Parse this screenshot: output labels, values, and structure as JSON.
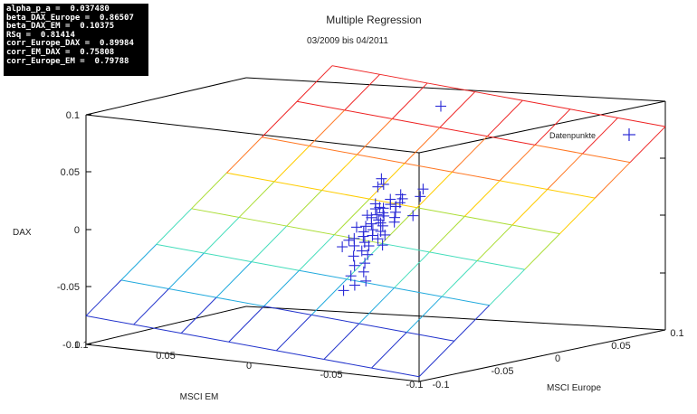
{
  "stats_box": {
    "lines": [
      "alpha_p_a =  0.037480",
      "beta_DAX_Europe =  0.86507",
      "beta_DAX_EM =  0.10375",
      "RSq =  0.81414",
      "corr_Europe_DAX =  0.89984",
      "corr_EM_DAX =  0.75808",
      "corr_Europe_EM =  0.79788"
    ]
  },
  "chart_data": {
    "type": "scatter",
    "title": "Multiple Regression",
    "subtitle": "03/2009 bis 04/2011",
    "zlabel": "DAX",
    "xlabel": "MSCI EM",
    "ylabel": "MSCI Europe",
    "legend": "Datenpunkte",
    "z_ticks": [
      "0.1",
      "0.05",
      "0",
      "-0.05",
      "-0.1"
    ],
    "x_ticks": [
      "0.1",
      "0.05",
      "0",
      "-0.05",
      "-0.1"
    ],
    "y_ticks": [
      "-0.1",
      "-0.05",
      "0",
      "0.05",
      "0.1"
    ],
    "colors": {
      "points": "#2b2bd6",
      "plane": [
        "#2233cc",
        "#22aadd",
        "#44ddbb",
        "#aadd33",
        "#ffcc00",
        "#ff7722",
        "#ee2222"
      ]
    },
    "plane": {
      "alpha": 0.001,
      "beta_europe": 0.86507,
      "beta_em": 0.10375
    },
    "points": [
      {
        "em": 0.02,
        "eu": 0.08,
        "dax": 0.08
      },
      {
        "em": 0.015,
        "eu": 0.025,
        "dax": 0.03
      },
      {
        "em": 0.01,
        "eu": 0.02,
        "dax": 0.027
      },
      {
        "em": 0.012,
        "eu": 0.018,
        "dax": 0.025
      },
      {
        "em": -0.01,
        "eu": 0.025,
        "dax": 0.025
      },
      {
        "em": -0.012,
        "eu": 0.02,
        "dax": 0.02
      },
      {
        "em": -0.005,
        "eu": 0.015,
        "dax": 0.018
      },
      {
        "em": -0.005,
        "eu": 0.013,
        "dax": 0.015
      },
      {
        "em": 0.0,
        "eu": 0.012,
        "dax": 0.013
      },
      {
        "em": 0.005,
        "eu": 0.01,
        "dax": 0.01
      },
      {
        "em": 0.002,
        "eu": 0.009,
        "dax": 0.01
      },
      {
        "em": -0.004,
        "eu": 0.011,
        "dax": 0.012
      },
      {
        "em": -0.006,
        "eu": 0.008,
        "dax": 0.008
      },
      {
        "em": 0.0,
        "eu": 0.006,
        "dax": 0.007
      },
      {
        "em": 0.003,
        "eu": 0.005,
        "dax": 0.005
      },
      {
        "em": -0.002,
        "eu": 0.004,
        "dax": 0.005
      },
      {
        "em": -0.007,
        "eu": 0.006,
        "dax": 0.004
      },
      {
        "em": 0.004,
        "eu": 0.002,
        "dax": 0.003
      },
      {
        "em": -0.001,
        "eu": 0.001,
        "dax": 0.002
      },
      {
        "em": -0.003,
        "eu": 0.0,
        "dax": 0.0
      },
      {
        "em": 0.001,
        "eu": -0.002,
        "dax": -0.001
      },
      {
        "em": -0.005,
        "eu": -0.001,
        "dax": -0.002
      },
      {
        "em": 0.003,
        "eu": -0.004,
        "dax": -0.003
      },
      {
        "em": -0.002,
        "eu": -0.005,
        "dax": -0.005
      },
      {
        "em": -0.006,
        "eu": -0.004,
        "dax": -0.006
      },
      {
        "em": 0.002,
        "eu": -0.007,
        "dax": -0.007
      },
      {
        "em": -0.004,
        "eu": -0.008,
        "dax": -0.009
      },
      {
        "em": 0.0,
        "eu": -0.01,
        "dax": -0.01
      },
      {
        "em": -0.008,
        "eu": -0.009,
        "dax": -0.011
      },
      {
        "em": 0.004,
        "eu": -0.012,
        "dax": -0.012
      },
      {
        "em": -0.003,
        "eu": -0.013,
        "dax": -0.014
      },
      {
        "em": -0.007,
        "eu": -0.015,
        "dax": -0.016
      },
      {
        "em": 0.001,
        "eu": -0.016,
        "dax": -0.017
      },
      {
        "em": -0.005,
        "eu": -0.018,
        "dax": -0.02
      },
      {
        "em": -0.01,
        "eu": -0.02,
        "dax": -0.022
      },
      {
        "em": -0.003,
        "eu": -0.022,
        "dax": -0.024
      },
      {
        "em": -0.012,
        "eu": -0.025,
        "dax": -0.028
      },
      {
        "em": -0.008,
        "eu": -0.028,
        "dax": -0.03
      },
      {
        "em": -0.015,
        "eu": -0.03,
        "dax": -0.034
      },
      {
        "em": -0.011,
        "eu": -0.035,
        "dax": -0.037
      },
      {
        "em": -0.017,
        "eu": -0.04,
        "dax": -0.043
      },
      {
        "em": -0.014,
        "eu": -0.045,
        "dax": -0.047
      },
      {
        "em": 0.006,
        "eu": 0.008,
        "dax": 0.009
      },
      {
        "em": 0.008,
        "eu": 0.004,
        "dax": 0.004
      },
      {
        "em": -0.009,
        "eu": 0.003,
        "dax": 0.001
      },
      {
        "em": 0.007,
        "eu": -0.006,
        "dax": -0.004
      },
      {
        "em": -0.01,
        "eu": -0.006,
        "dax": -0.008
      },
      {
        "em": 0.005,
        "eu": -0.015,
        "dax": -0.013
      },
      {
        "em": -0.013,
        "eu": -0.012,
        "dax": -0.015
      },
      {
        "em": 0.003,
        "eu": 0.016,
        "dax": 0.016
      },
      {
        "em": -0.015,
        "eu": 0.01,
        "dax": 0.006
      },
      {
        "em": 0.009,
        "eu": 0.012,
        "dax": 0.012
      },
      {
        "em": -0.001,
        "eu": 0.019,
        "dax": 0.02
      },
      {
        "em": 0.006,
        "eu": -0.019,
        "dax": -0.018
      },
      {
        "em": -0.02,
        "eu": -0.035,
        "dax": -0.04
      }
    ]
  }
}
